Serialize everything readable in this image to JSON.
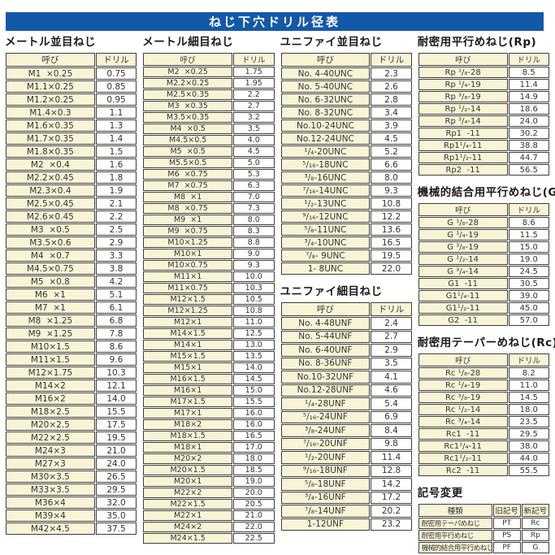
{
  "title": "ねじ下穴ドリル径表",
  "accent_color": "#1359a9",
  "cream_color": "#faf4d6",
  "col_headers": {
    "name": "呼び",
    "drill": "ドリル"
  },
  "footer_mark": "- -",
  "tables": {
    "metric_coarse": {
      "title": "メートル並目ねじ",
      "rows": [
        [
          "M1  ×0.25",
          "0.75"
        ],
        [
          "M1.1×0.25",
          "0.85"
        ],
        [
          "M1.2×0.25",
          "0.95"
        ],
        [
          "M1.4×0.3",
          "1.1"
        ],
        [
          "M1.6×0.35",
          "1.3"
        ],
        [
          "M1.7×0.35",
          "1.4"
        ],
        [
          "M1.8×0.35",
          "1.5"
        ],
        [
          "M2  ×0.4",
          "1.6"
        ],
        [
          "M2.2×0.45",
          "1.8"
        ],
        [
          "M2.3×0.4",
          "1.9"
        ],
        [
          "M2.5×0.45",
          "2.1"
        ],
        [
          "M2.6×0.45",
          "2.2"
        ],
        [
          "M3  ×0.5",
          "2.5"
        ],
        [
          "M3.5×0.6",
          "2.9"
        ],
        [
          "M4  ×0.7",
          "3.3"
        ],
        [
          "M4.5×0.75",
          "3.8"
        ],
        [
          "M5  ×0.8",
          "4.2"
        ],
        [
          "M6  ×1",
          "5.1"
        ],
        [
          "M7  ×1",
          "6.1"
        ],
        [
          "M8  ×1.25",
          "6.8"
        ],
        [
          "M9  ×1.25",
          "7.8"
        ],
        [
          "M10×1.5",
          "8.6"
        ],
        [
          "M11×1.5",
          "9.6"
        ],
        [
          "M12×1.75",
          "10.3"
        ],
        [
          "M14×2",
          "12.1"
        ],
        [
          "M16×2",
          "14.0"
        ],
        [
          "M18×2.5",
          "15.5"
        ],
        [
          "M20×2.5",
          "17.5"
        ],
        [
          "M22×2.5",
          "19.5"
        ],
        [
          "M24×3",
          "21.0"
        ],
        [
          "M27×3",
          "24.0"
        ],
        [
          "M30×3.5",
          "26.5"
        ],
        [
          "M33×3.5",
          "29.5"
        ],
        [
          "M36×4",
          "32.0"
        ],
        [
          "M39×4",
          "35.0"
        ],
        [
          "M42×4.5",
          "37.5"
        ]
      ]
    },
    "metric_fine": {
      "title": "メートル細目ねじ",
      "rows": [
        [
          "M2  ×0.25",
          "1.75"
        ],
        [
          "M2.2×0.25",
          "1.95"
        ],
        [
          "M2.5×0.35",
          "2.2"
        ],
        [
          "M3  ×0.35",
          "2.7"
        ],
        [
          "M3.5×0.35",
          "3.2"
        ],
        [
          "M4  ×0.5",
          "3.5"
        ],
        [
          "M4.5×0.5",
          "4.0"
        ],
        [
          "M5  ×0.5",
          "4.5"
        ],
        [
          "M5.5×0.5",
          "5.0"
        ],
        [
          "M6  ×0.75",
          "5.3"
        ],
        [
          "M7  ×0.75",
          "6.3"
        ],
        [
          "M8  ×1",
          "7.0"
        ],
        [
          "M8  ×0.75",
          "7.3"
        ],
        [
          "M9  ×1",
          "8.0"
        ],
        [
          "M9  ×0.75",
          "8.3"
        ],
        [
          "M10×1.25",
          "8.8"
        ],
        [
          "M10×1",
          "9.0"
        ],
        [
          "M10×0.75",
          "9.3"
        ],
        [
          "M11×1",
          "10.0"
        ],
        [
          "M11×0.75",
          "10.3"
        ],
        [
          "M12×1.5",
          "10.5"
        ],
        [
          "M12×1.25",
          "10.8"
        ],
        [
          "M12×1",
          "11.0"
        ],
        [
          "M14×1.5",
          "12.5"
        ],
        [
          "M14×1",
          "13.0"
        ],
        [
          "M15×1.5",
          "13.5"
        ],
        [
          "M15×1",
          "14.0"
        ],
        [
          "M16×1.5",
          "14.5"
        ],
        [
          "M16×1",
          "15.0"
        ],
        [
          "M17×1.5",
          "15.5"
        ],
        [
          "M17×1",
          "16.0"
        ],
        [
          "M18×2",
          "16.0"
        ],
        [
          "M18×1.5",
          "16.5"
        ],
        [
          "M18×1",
          "17.0"
        ],
        [
          "M20×2",
          "18.0"
        ],
        [
          "M20×1.5",
          "18.5"
        ],
        [
          "M20×1",
          "19.0"
        ],
        [
          "M22×2",
          "20.0"
        ],
        [
          "M22×1.5",
          "20.5"
        ],
        [
          "M22×1",
          "21.0"
        ],
        [
          "M24×2",
          "22.0"
        ],
        [
          "M24×1.5",
          "22.5"
        ]
      ]
    },
    "unified_coarse": {
      "title": "ユニファイ並目ねじ",
      "rows": [
        [
          "No. 4-40UNC",
          "2.3"
        ],
        [
          "No. 5-40UNC",
          "2.6"
        ],
        [
          "No. 6-32UNC",
          "2.8"
        ],
        [
          "No. 8-32UNC",
          "3.4"
        ],
        [
          "No.10-24UNC",
          "3.9"
        ],
        [
          "No.12-24UNC",
          "4.5"
        ],
        [
          "¹/₄-20UNC",
          "5.2"
        ],
        [
          "⁵/₁₆-18UNC",
          "6.6"
        ],
        [
          "³/₈-16UNC",
          "8.0"
        ],
        [
          "⁷/₁₆-14UNC",
          "9.3"
        ],
        [
          "¹/₂-13UNC",
          "10.8"
        ],
        [
          "⁹/₁₆-12UNC",
          "12.2"
        ],
        [
          "⁵/₈-11UNC",
          "13.6"
        ],
        [
          "³/₄-10UNC",
          "16.5"
        ],
        [
          "⁷/₈- 9UNC",
          "19.5"
        ],
        [
          "1- 8UNC",
          "22.0"
        ]
      ]
    },
    "unified_fine": {
      "title": "ユニファイ細目ねじ",
      "rows": [
        [
          "No. 4-48UNF",
          "2.4"
        ],
        [
          "No. 5-44UNF",
          "2.7"
        ],
        [
          "No. 6-40UNF",
          "2.9"
        ],
        [
          "No. 8-36UNF",
          "3.5"
        ],
        [
          "No.10-32UNF",
          "4.1"
        ],
        [
          "No.12-28UNF",
          "4.6"
        ],
        [
          "¹/₄-28UNF",
          "5.4"
        ],
        [
          "⁵/₁₆-24UNF",
          "6.9"
        ],
        [
          "³/₈-24UNF",
          "8.4"
        ],
        [
          "⁷/₁₆-20UNF",
          "9.8"
        ],
        [
          "¹/₂-20UNF",
          "11.4"
        ],
        [
          "⁹/₁₆-18UNF",
          "12.8"
        ],
        [
          "⁵/₈-18UNF",
          "14.2"
        ],
        [
          "³/₄-16UNF",
          "17.2"
        ],
        [
          "⁷/₈-14UNF",
          "20.2"
        ],
        [
          "1-12UNF",
          "23.2"
        ]
      ]
    },
    "rp": {
      "title": "耐密用平行めねじ(Rp)",
      "rows": [
        [
          "Rp ¹/₈-28",
          "8.5"
        ],
        [
          "Rp ¹/₄-19",
          "11.4"
        ],
        [
          "Rp ³/₈-19",
          "14.9"
        ],
        [
          "Rp ¹/₂-14",
          "18.6"
        ],
        [
          "Rp ³/₄-14",
          "24.0"
        ],
        [
          "Rp1  -11",
          "30.2"
        ],
        [
          "Rp1¹/₄-11",
          "38.8"
        ],
        [
          "Rp1¹/₂-11",
          "44.7"
        ],
        [
          "Rp2  -11",
          "56.5"
        ]
      ]
    },
    "g": {
      "title": "機械的結合用平行めねじ(G)",
      "rows": [
        [
          "G ¹/₈-28",
          "8.6"
        ],
        [
          "G ¹/₄-19",
          "11.5"
        ],
        [
          "G ³/₈-19",
          "15.0"
        ],
        [
          "G ¹/₂-14",
          "19.0"
        ],
        [
          "G ³/₄-14",
          "24.5"
        ],
        [
          "G1  -11",
          "30.5"
        ],
        [
          "G1¹/₄-11",
          "39.0"
        ],
        [
          "G1¹/₂-11",
          "45.0"
        ],
        [
          "G2  -11",
          "57.0"
        ]
      ]
    },
    "rc": {
      "title": "耐密用テーパーめねじ(Rc)",
      "rows": [
        [
          "Rc ¹/₈-28",
          "8.2"
        ],
        [
          "Rc ¹/₄-19",
          "11.0"
        ],
        [
          "Rc ³/₈-19",
          "14.5"
        ],
        [
          "Rc ¹/₂-14",
          "18.0"
        ],
        [
          "Rc ³/₄-14",
          "23.5"
        ],
        [
          "Rc1  -11",
          "29.5"
        ],
        [
          "Rc1¹/₄-11",
          "38.0"
        ],
        [
          "Rc1¹/₂-11",
          "44.0"
        ],
        [
          "Rc2  -11",
          "55.5"
        ]
      ]
    },
    "symbol_change": {
      "title": "記号変更",
      "headers": [
        "種類",
        "旧記号",
        "新記号"
      ],
      "rows": [
        [
          "耐密用テーパめねじ",
          "PT",
          "Rc"
        ],
        [
          "耐密用平行めねじ",
          "PS",
          "Rp"
        ],
        [
          "機械的結合用平行めねじ",
          "PF",
          "G"
        ]
      ]
    }
  }
}
